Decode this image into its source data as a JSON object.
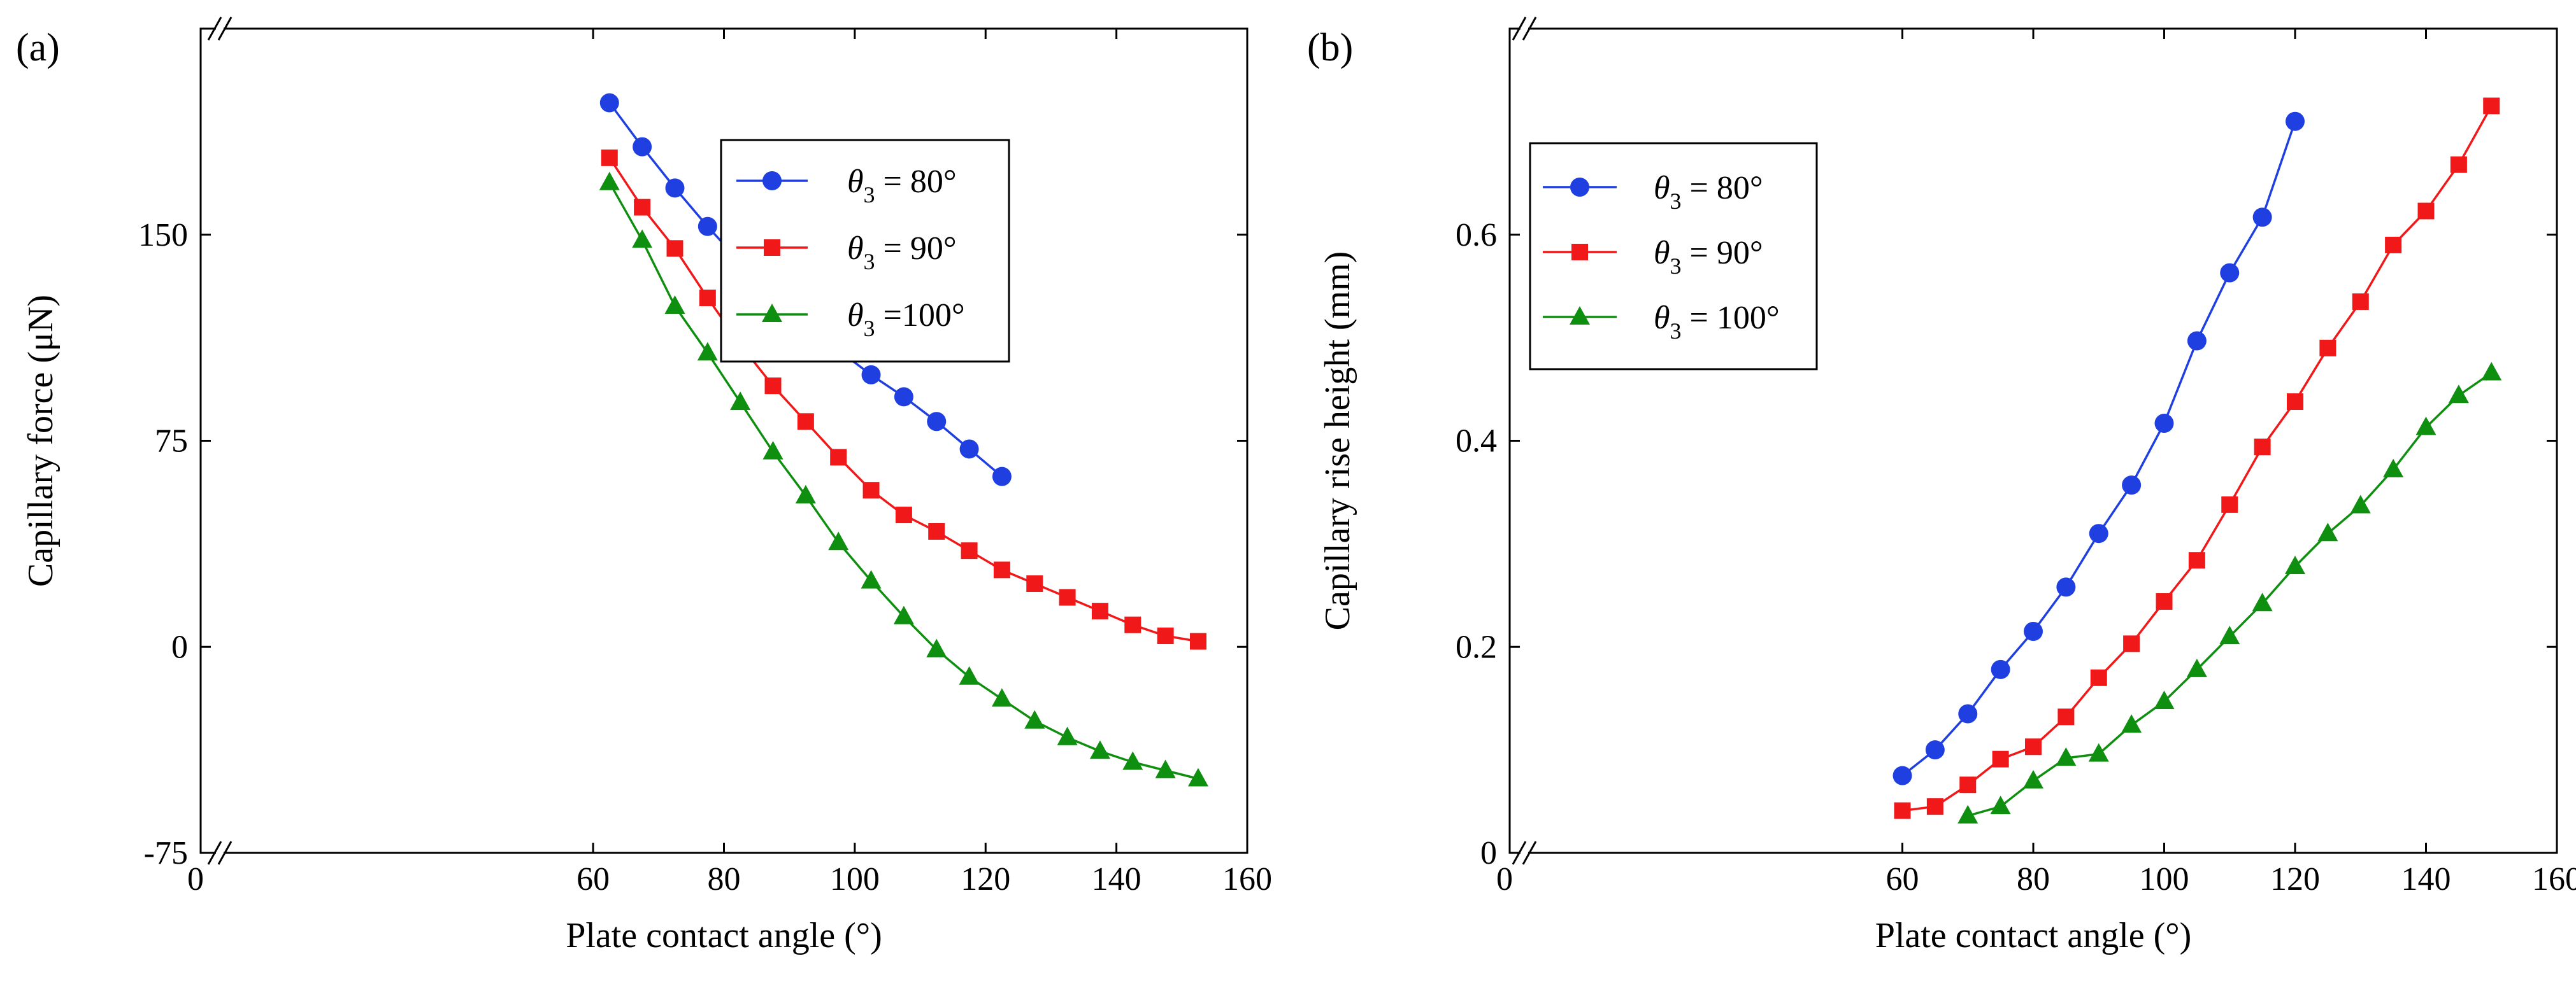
{
  "chart_data": [
    {
      "type": "line",
      "panel_label": "(a)",
      "xlabel": "Plate contact angle (°)",
      "ylabel": "Capillary force (μN)",
      "xlim": [
        0,
        160
      ],
      "ylim": [
        -75,
        225
      ],
      "x_break": true,
      "xticks": [
        0,
        60,
        80,
        100,
        120,
        140,
        160
      ],
      "yticks": [
        -75,
        0,
        75,
        150
      ],
      "legend_position": "top-right",
      "series": [
        {
          "name": "θ3 = 80°",
          "legend_pre": "θ",
          "legend_sub": "3",
          "legend_post": " = 80°",
          "color": "#1f3fe0",
          "marker": "circle",
          "x": [
            62.5,
            67.5,
            72.5,
            77.5,
            82.5,
            87.5,
            92.5,
            97.5,
            102.5,
            107.5,
            112.5,
            117.5,
            122.5
          ],
          "y": [
            198,
            182,
            167,
            153,
            140,
            128,
            118,
            108,
            99,
            91,
            82,
            72,
            62
          ]
        },
        {
          "name": "θ3 = 90°",
          "legend_pre": "θ",
          "legend_sub": "3",
          "legend_post": " = 90°",
          "color": "#f01818",
          "marker": "square",
          "x": [
            62.5,
            67.5,
            72.5,
            77.5,
            82.5,
            87.5,
            92.5,
            97.5,
            102.5,
            107.5,
            112.5,
            117.5,
            122.5,
            127.5,
            132.5,
            137.5,
            142.5,
            147.5,
            152.5
          ],
          "y": [
            178,
            160,
            145,
            127,
            110,
            95,
            82,
            69,
            57,
            48,
            42,
            35,
            28,
            23,
            18,
            13,
            8,
            4,
            2
          ]
        },
        {
          "name": "θ3 =100°",
          "legend_pre": "θ",
          "legend_sub": "3",
          "legend_post": " =100°",
          "color": "#0f8f0f",
          "marker": "triangle",
          "x": [
            62.5,
            67.5,
            72.5,
            77.5,
            82.5,
            87.5,
            92.5,
            97.5,
            102.5,
            107.5,
            112.5,
            117.5,
            122.5,
            127.5,
            132.5,
            137.5,
            142.5,
            147.5,
            152.5
          ],
          "y": [
            169,
            148,
            124,
            107,
            89,
            71,
            55,
            38,
            24,
            11,
            -1,
            -11,
            -19,
            -27,
            -33,
            -38,
            -42,
            -45,
            -48
          ]
        }
      ]
    },
    {
      "type": "line",
      "panel_label": "(b)",
      "xlabel": "Plate contact angle (°)",
      "ylabel": "Capillary rise height  (mm)",
      "xlim": [
        0,
        160
      ],
      "ylim": [
        0,
        0.8
      ],
      "x_break": true,
      "xticks": [
        0,
        60,
        80,
        100,
        120,
        140,
        160
      ],
      "yticks": [
        0,
        0.2,
        0.4,
        0.6
      ],
      "legend_position": "top-left",
      "series": [
        {
          "name": "θ3 = 80°",
          "legend_pre": "θ",
          "legend_sub": "3",
          "legend_post": " = 80°",
          "color": "#1f3fe0",
          "marker": "circle",
          "x": [
            60,
            65,
            70,
            75,
            80,
            85,
            90,
            95,
            100,
            105,
            110,
            115,
            120
          ],
          "y": [
            0.075,
            0.1,
            0.135,
            0.178,
            0.215,
            0.258,
            0.31,
            0.357,
            0.417,
            0.497,
            0.563,
            0.617,
            0.71
          ]
        },
        {
          "name": "θ3 = 90°",
          "legend_pre": "θ",
          "legend_sub": "3",
          "legend_post": " = 90°",
          "color": "#f01818",
          "marker": "square",
          "x": [
            60,
            65,
            70,
            75,
            80,
            85,
            90,
            95,
            100,
            105,
            110,
            115,
            120,
            125,
            130,
            135,
            140,
            145,
            150
          ],
          "y": [
            0.041,
            0.045,
            0.066,
            0.091,
            0.103,
            0.132,
            0.17,
            0.203,
            0.244,
            0.284,
            0.338,
            0.394,
            0.438,
            0.49,
            0.535,
            0.59,
            0.623,
            0.668,
            0.725
          ]
        },
        {
          "name": "θ3 = 100°",
          "legend_pre": "θ",
          "legend_sub": "3",
          "legend_post": " = 100°",
          "color": "#0f8f0f",
          "marker": "triangle",
          "x": [
            70,
            75,
            80,
            85,
            90,
            95,
            100,
            105,
            110,
            115,
            120,
            125,
            130,
            135,
            140,
            145,
            150
          ],
          "y": [
            0.036,
            0.045,
            0.07,
            0.092,
            0.096,
            0.124,
            0.147,
            0.178,
            0.21,
            0.242,
            0.278,
            0.31,
            0.337,
            0.372,
            0.413,
            0.444,
            0.466
          ]
        }
      ]
    }
  ]
}
